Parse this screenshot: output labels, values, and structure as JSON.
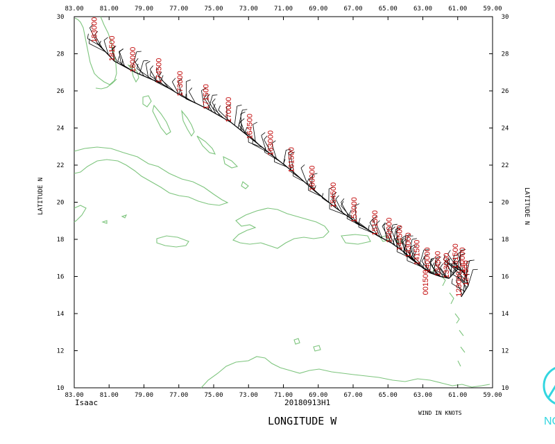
{
  "map": {
    "storm_name": "Isaac",
    "product_id": "20180913H1",
    "wind_units": "WIND IN KNOTS",
    "x_axis_title": "LONGITUDE  W",
    "y_axis_title": "LATITUDE  N",
    "logo_text": "NC",
    "lon_range": [
      83.0,
      59.0
    ],
    "lat_range": [
      10,
      30
    ],
    "lon_ticks": [
      "83.00",
      "81.00",
      "79.00",
      "77.00",
      "75.00",
      "73.00",
      "71.00",
      "69.00",
      "67.00",
      "65.00",
      "63.00",
      "61.00",
      "59.00"
    ],
    "lat_ticks": [
      "30",
      "28",
      "26",
      "24",
      "22",
      "20",
      "18",
      "16",
      "14",
      "12",
      "10"
    ],
    "colors": {
      "coastline": "#7cc47c",
      "time_labels": "#c00000",
      "barbs": "#000000",
      "logo": "#33d6e0"
    },
    "time_labels": [
      {
        "text": "183000",
        "lon": 81.7,
        "lat": 28.6
      },
      {
        "text": "181500",
        "lon": 80.7,
        "lat": 27.6
      },
      {
        "text": "180000",
        "lon": 79.5,
        "lat": 27.0
      },
      {
        "text": "174500",
        "lon": 78.0,
        "lat": 26.4
      },
      {
        "text": "173000",
        "lon": 76.8,
        "lat": 25.7
      },
      {
        "text": "171500",
        "lon": 75.3,
        "lat": 25.0
      },
      {
        "text": "170000",
        "lon": 74.0,
        "lat": 24.3
      },
      {
        "text": "164500",
        "lon": 72.8,
        "lat": 23.4
      },
      {
        "text": "163000",
        "lon": 71.6,
        "lat": 22.5
      },
      {
        "text": "161500",
        "lon": 70.4,
        "lat": 21.6
      },
      {
        "text": "160000",
        "lon": 69.2,
        "lat": 20.6
      },
      {
        "text": "154500",
        "lon": 68.0,
        "lat": 19.7
      },
      {
        "text": "153000",
        "lon": 66.8,
        "lat": 18.9
      },
      {
        "text": "151500",
        "lon": 65.6,
        "lat": 18.2
      },
      {
        "text": "150000",
        "lon": 64.8,
        "lat": 17.8
      },
      {
        "text": "144500",
        "lon": 64.2,
        "lat": 17.4
      },
      {
        "text": "143000",
        "lon": 63.7,
        "lat": 17.0
      },
      {
        "text": "141500",
        "lon": 63.2,
        "lat": 16.6
      },
      {
        "text": "140000",
        "lon": 62.6,
        "lat": 16.2
      },
      {
        "text": "134500",
        "lon": 62.0,
        "lat": 16.0
      },
      {
        "text": "133000",
        "lon": 61.5,
        "lat": 15.9
      },
      {
        "text": "131500",
        "lon": 61.0,
        "lat": 16.4
      },
      {
        "text": "130000",
        "lon": 60.6,
        "lat": 16.2
      },
      {
        "text": "124500",
        "lon": 60.4,
        "lat": 15.5
      },
      {
        "text": "123000",
        "lon": 60.8,
        "lat": 14.9
      },
      {
        "text": "001500",
        "lon": 62.7,
        "lat": 15.0
      }
    ]
  }
}
